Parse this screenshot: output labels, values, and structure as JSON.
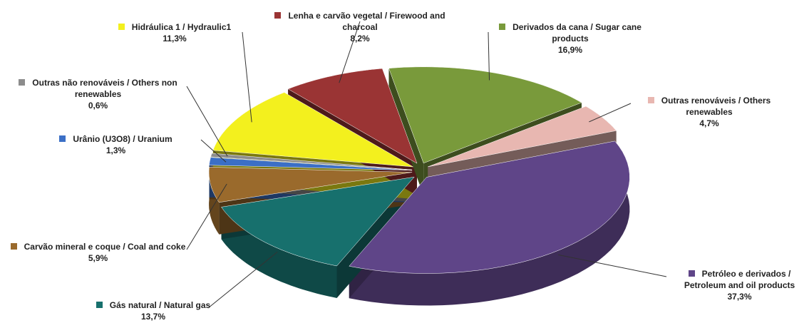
{
  "chart_data": {
    "type": "pie3d",
    "categories": [
      "Petróleo e derivados / Petroleum and oil products",
      "Gás natural / Natural gas",
      "Carvão mineral e coque / Coal and coke",
      "Urânio (U3O8) / Uranium",
      "Outras não renováveis / Others non renewables",
      "Hidráulica 1 / Hydraulic1",
      "Lenha e carvão vegetal / Firewood and charcoal",
      "Derivados da cana / Sugar cane products",
      "Outras renováveis / Others renewables"
    ],
    "values": [
      37.3,
      13.7,
      5.9,
      1.3,
      0.6,
      11.3,
      8.2,
      16.9,
      4.7
    ],
    "value_labels": [
      "37,3%",
      "13,7%",
      "5,9%",
      "1,3%",
      "0,6%",
      "11,3%",
      "8,2%",
      "16,9%",
      "4,7%"
    ],
    "colors": [
      "#5f4588",
      "#17706d",
      "#9a6a2c",
      "#3b6fc6",
      "#8c8c8c",
      "#f3f01e",
      "#9a3434",
      "#799a3b",
      "#e8b7b1"
    ]
  }
}
